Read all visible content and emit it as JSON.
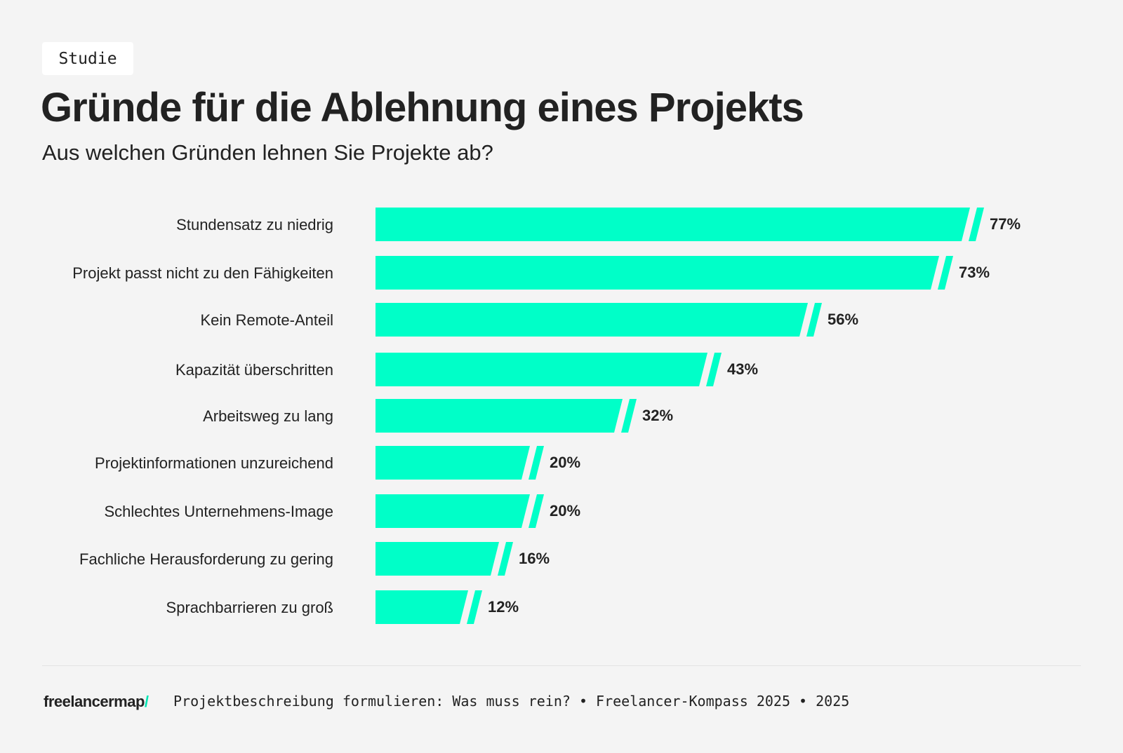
{
  "badge": "Studie",
  "footer": {
    "logo": "freelancermap",
    "logo_slash": "/",
    "source": "Projektbeschreibung formulieren: Was muss rein? • Freelancer-Kompass 2025 • 2025"
  },
  "chart_data": {
    "type": "bar",
    "orientation": "horizontal",
    "title": "Gründe für die Ablehnung eines Projekts",
    "subtitle": "Aus welchen Gründen lehnen Sie Projekte ab?",
    "categories": [
      "Stundensatz zu niedrig",
      "Projekt passst nicht zu den Fähigkeiten",
      "Kein Remote-Anteil",
      "Kapazität überschritten",
      "Arbeitsweg zu lang",
      "Projektinformationen unzureichend",
      "Schlechtes Unternehmens-Image",
      "Fachliche Herausforderung zu gering",
      "Sprachbarrieren zu groß"
    ],
    "values": [
      77,
      73,
      56,
      43,
      32,
      20,
      20,
      16,
      12
    ],
    "value_labels": [
      "77%",
      "73%",
      "56%",
      "43%",
      "32%",
      "20%",
      "20%",
      "16%",
      "12%"
    ],
    "unit": "%",
    "bar_color": "#00ffc8",
    "grid": false,
    "legend": "none"
  }
}
